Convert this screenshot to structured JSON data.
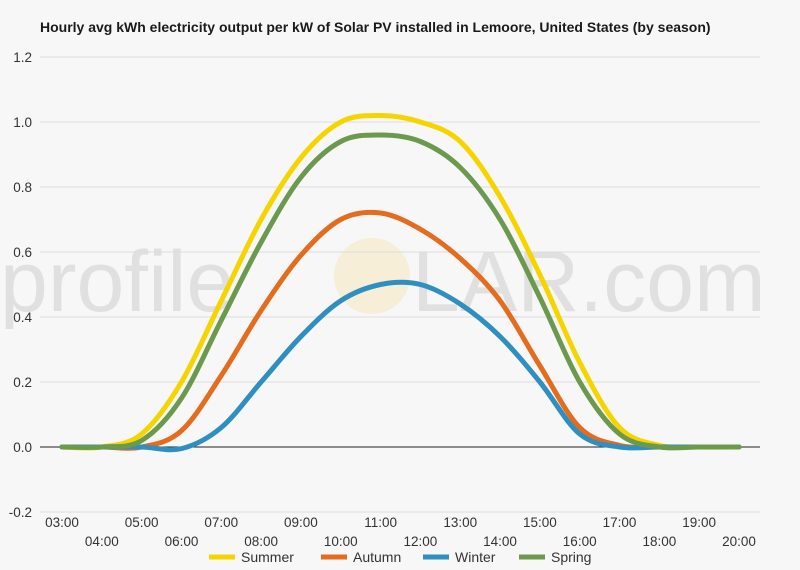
{
  "chart_data": {
    "type": "line",
    "title": "Hourly avg kWh electricity output per kW of Solar PV installed in Lemoore, United States (by season)",
    "xlabel": "",
    "ylabel": "",
    "x": [
      "03:00",
      "04:00",
      "05:00",
      "06:00",
      "07:00",
      "08:00",
      "09:00",
      "10:00",
      "11:00",
      "12:00",
      "13:00",
      "14:00",
      "15:00",
      "16:00",
      "17:00",
      "18:00",
      "19:00",
      "20:00"
    ],
    "ylim": [
      -0.2,
      1.2
    ],
    "yticks": [
      "-0.2",
      "0.0",
      "0.2",
      "0.4",
      "0.6",
      "0.8",
      "1.0",
      "1.2"
    ],
    "grid": true,
    "legend_position": "bottom",
    "series": [
      {
        "name": "Summer",
        "color": "#f5d400",
        "values": [
          0,
          0,
          0.04,
          0.2,
          0.45,
          0.7,
          0.89,
          1.0,
          1.02,
          1.0,
          0.94,
          0.77,
          0.53,
          0.26,
          0.06,
          0.005,
          0,
          0
        ]
      },
      {
        "name": "Autumn",
        "color": "#e36c1e",
        "values": [
          0,
          0,
          0,
          0.05,
          0.22,
          0.42,
          0.59,
          0.7,
          0.72,
          0.67,
          0.58,
          0.45,
          0.25,
          0.06,
          0.005,
          0,
          0,
          0
        ]
      },
      {
        "name": "Winter",
        "color": "#2e8fc0",
        "values": [
          0,
          0,
          0,
          -0.005,
          0.06,
          0.2,
          0.34,
          0.45,
          0.5,
          0.5,
          0.44,
          0.34,
          0.2,
          0.04,
          0,
          0,
          0,
          0
        ]
      },
      {
        "name": "Spring",
        "color": "#6b9a4e",
        "values": [
          0,
          0,
          0.02,
          0.15,
          0.39,
          0.63,
          0.83,
          0.94,
          0.96,
          0.94,
          0.86,
          0.7,
          0.46,
          0.2,
          0.04,
          0,
          0,
          0
        ]
      }
    ]
  },
  "watermark": {
    "text_left": "profile",
    "text_right": "LAR.com"
  }
}
